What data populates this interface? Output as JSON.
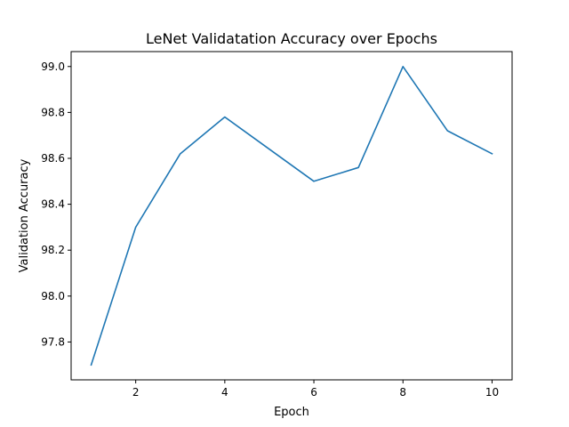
{
  "chart_data": {
    "type": "line",
    "title": "LeNet Validatation Accuracy over Epochs",
    "xlabel": "Epoch",
    "ylabel": "Validation Accuracy",
    "xlim": [
      0.55,
      10.45
    ],
    "ylim": [
      97.635,
      99.065
    ],
    "xticks": [
      2,
      4,
      6,
      8,
      10
    ],
    "xtick_labels": [
      "2",
      "4",
      "6",
      "8",
      "10"
    ],
    "yticks": [
      97.8,
      98.0,
      98.2,
      98.4,
      98.6,
      98.8,
      99.0
    ],
    "ytick_labels": [
      "97.8",
      "98.0",
      "98.2",
      "98.4",
      "98.6",
      "98.8",
      "99.0"
    ],
    "grid": false,
    "legend": false,
    "series": [
      {
        "color": "#1f77b4",
        "x": [
          1,
          2,
          3,
          4,
          5,
          6,
          7,
          8,
          9,
          10
        ],
        "y": [
          97.7,
          98.3,
          98.62,
          98.78,
          98.64,
          98.5,
          98.56,
          99.0,
          98.72,
          98.62
        ]
      }
    ]
  }
}
